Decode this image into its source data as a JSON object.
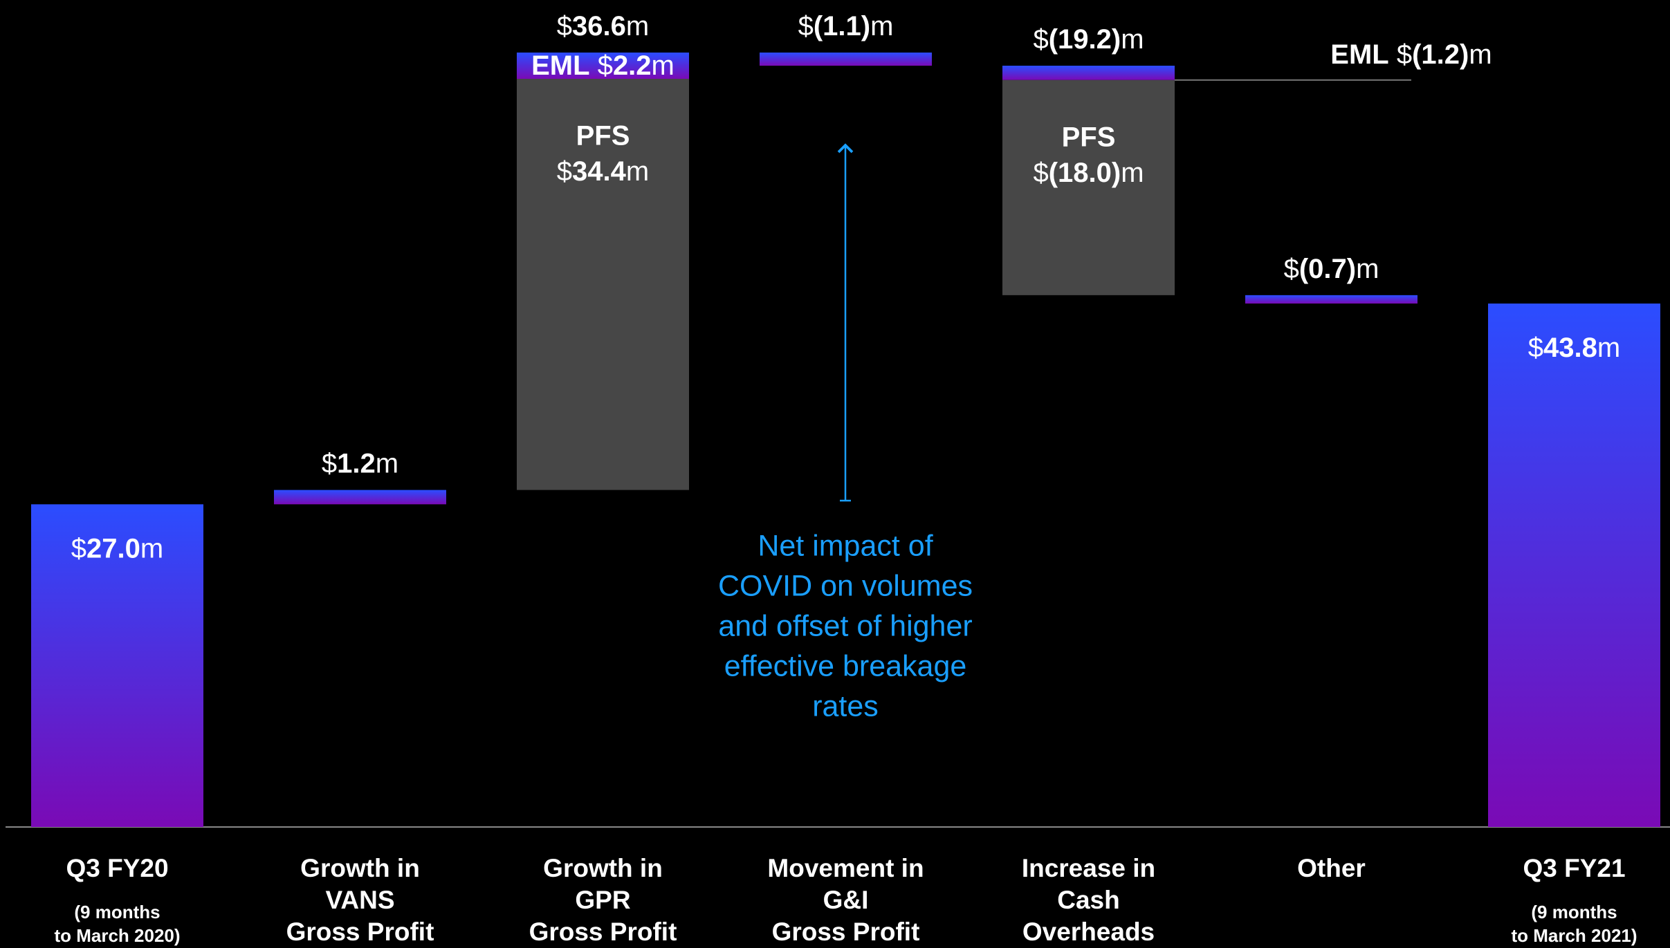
{
  "chart_data": {
    "type": "waterfall",
    "categories": [
      [
        "Q3 FY20"
      ],
      [
        "Growth in",
        "VANS",
        "Gross Profit"
      ],
      [
        "Growth in",
        "GPR",
        "Gross Profit"
      ],
      [
        "Movement in",
        "G&I",
        "Gross Profit"
      ],
      [
        "Increase in",
        "Cash",
        "Overheads"
      ],
      [
        "Other"
      ],
      [
        "Q3 FY21"
      ]
    ],
    "category_notes": [
      [
        "(9 months",
        "to March 2020)"
      ],
      null,
      null,
      null,
      null,
      null,
      [
        "(9 months",
        "to March 2021)"
      ]
    ],
    "values": [
      27.0,
      1.2,
      36.6,
      -1.1,
      -19.2,
      -0.7,
      43.8
    ],
    "value_labels": [
      "$27.0m",
      "$1.2m",
      "$36.6m",
      "$(1.1)m",
      "$(19.2)m",
      "$(0.7)m",
      "$43.8m"
    ],
    "segments": [
      null,
      null,
      [
        {
          "name": "PFS",
          "value": 34.4,
          "value_label": "$34.4m",
          "color": "#474747"
        },
        {
          "name": "EML",
          "value": 2.2,
          "value_label": "$2.2m",
          "color": "gradient"
        }
      ],
      null,
      [
        {
          "name": "EML",
          "value": -1.2,
          "value_label": "$(1.2)m",
          "color": "gradient"
        },
        {
          "name": "PFS",
          "value": -18.0,
          "value_label": "$(18.0)m",
          "color": "#474747"
        }
      ],
      null,
      null
    ],
    "gradient": [
      "#2b4dff",
      "#7a0ab5"
    ],
    "annotation": [
      "Net impact of",
      "COVID on volumes",
      "and offset of higher",
      "effective breakage",
      "rates"
    ]
  }
}
